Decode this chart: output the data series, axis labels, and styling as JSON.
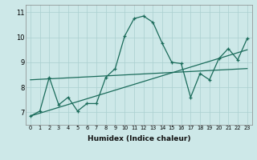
{
  "xlabel": "Humidex (Indice chaleur)",
  "xlim": [
    -0.5,
    23.5
  ],
  "ylim": [
    6.5,
    11.3
  ],
  "yticks": [
    7,
    8,
    9,
    10,
    11
  ],
  "xticks": [
    0,
    1,
    2,
    3,
    4,
    5,
    6,
    7,
    8,
    9,
    10,
    11,
    12,
    13,
    14,
    15,
    16,
    17,
    18,
    19,
    20,
    21,
    22,
    23
  ],
  "bg_color": "#cde8e8",
  "grid_color": "#aacfcf",
  "line_color": "#1a6b5a",
  "main_x": [
    0,
    1,
    2,
    3,
    4,
    5,
    6,
    7,
    8,
    9,
    10,
    11,
    12,
    13,
    14,
    15,
    16,
    17,
    18,
    19,
    20,
    21,
    22,
    23
  ],
  "main_y": [
    6.85,
    7.05,
    8.4,
    7.3,
    7.6,
    7.05,
    7.35,
    7.35,
    8.4,
    8.75,
    10.05,
    10.75,
    10.85,
    10.6,
    9.75,
    9.0,
    8.95,
    7.6,
    8.55,
    8.3,
    9.15,
    9.55,
    9.1,
    9.95
  ],
  "trend1_x": [
    0,
    23
  ],
  "trend1_y": [
    6.85,
    9.5
  ],
  "trend2_x": [
    0,
    23
  ],
  "trend2_y": [
    8.3,
    8.75
  ]
}
